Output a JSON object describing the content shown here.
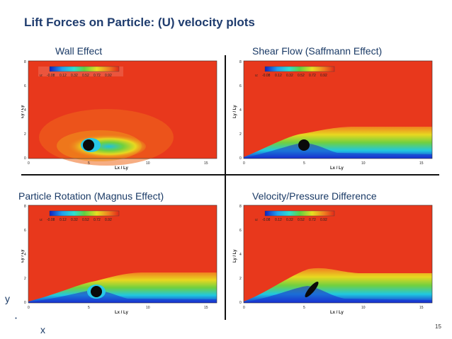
{
  "title": "Lift Forces on Particle: (U) velocity plots",
  "panels": [
    {
      "label": "Wall Effect"
    },
    {
      "label": "Shear Flow (Saffmann Effect)"
    },
    {
      "label": "Particle Rotation (Magnus Effect)"
    },
    {
      "label": "Velocity/Pressure Difference"
    }
  ],
  "colorbar": {
    "var": "u:",
    "levels": [
      "-0.08",
      "0.12",
      "0.32",
      "0.52",
      "0.72",
      "0.92"
    ]
  },
  "axes": {
    "xlabel": "Lx / Ly",
    "ylabel": "Ly / Ly",
    "xticks": [
      "0",
      "5",
      "10",
      "15"
    ],
    "yticks": [
      "0",
      "2",
      "4",
      "6",
      "8"
    ]
  },
  "axis_letters": {
    "x": "x",
    "y": "y"
  },
  "page_number": "15",
  "colors": {
    "title": "#1f3c6e",
    "flow_red": "#e8361c",
    "flow_orange": "#f07a1a",
    "flow_yellow": "#f0e020",
    "flow_green": "#70c830",
    "flow_cyan": "#20c8e0",
    "flow_blue": "#1830d0"
  }
}
